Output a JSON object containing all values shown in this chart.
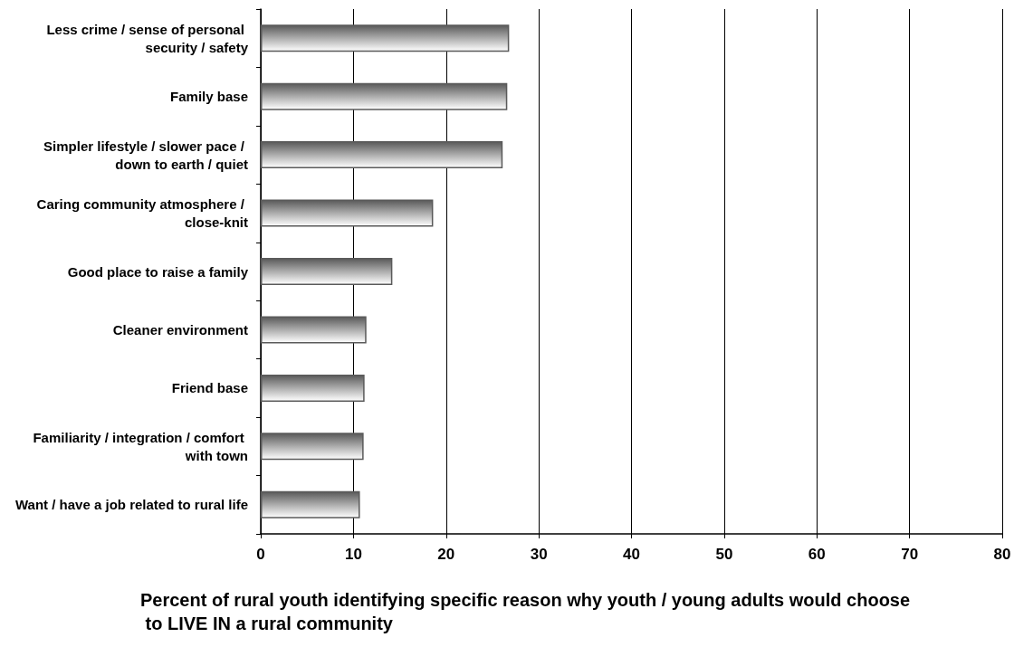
{
  "chart_data": {
    "type": "bar",
    "orientation": "horizontal",
    "categories": [
      "Less crime / sense of personal security / safety",
      "Family base",
      "Simpler lifestyle / slower pace / down to earth / quiet",
      "Caring community atmosphere / close-knit",
      "Good place to raise a family",
      "Cleaner environment",
      "Friend base",
      "Familiarity / integration / comfort with town",
      "Want / have a job related to rural life"
    ],
    "values": [
      26.8,
      26.6,
      26.1,
      18.6,
      14.2,
      11.4,
      11.2,
      11.1,
      10.7
    ],
    "color": "#5a5a5a",
    "xlabel": "Percent of rural youth identifying specific reason why youth / young adults would choose to LIVE IN a rural community",
    "xlim": [
      0,
      80
    ],
    "xticks": [
      0,
      10,
      20,
      30,
      40,
      50,
      60,
      70,
      80
    ],
    "grid": "x"
  }
}
